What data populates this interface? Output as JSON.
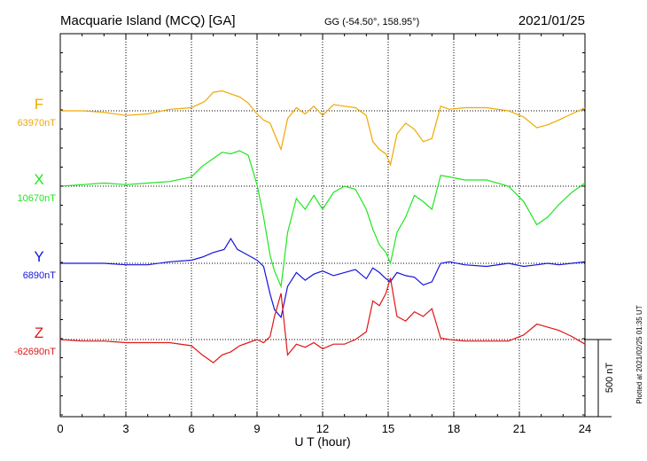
{
  "header": {
    "station": "Macquarie Island (MCQ)  [GA]",
    "coords": "GG (-54.50°, 158.95°)",
    "date": "2021/01/25"
  },
  "footer": {
    "plotted": "Plotted at 2021/02/25 01:35 UT"
  },
  "chart_data": {
    "type": "line",
    "title": "Macquarie Island (MCQ)  [GA]",
    "xlabel": "U T (hour)",
    "xlim": [
      0,
      24
    ],
    "xticks": [
      0,
      3,
      6,
      9,
      12,
      15,
      18,
      21,
      24
    ],
    "xtick_labels": [
      "0",
      "3",
      "6",
      "9",
      "12",
      "15",
      "18",
      "21",
      "24"
    ],
    "scale_bar_label": "500 nT",
    "scale_bar_nT": 500,
    "grid": true,
    "series": [
      {
        "name": "F",
        "baseline_label": "63970nT",
        "baseline_nT": 63970,
        "color": "#f0a800",
        "points": [
          [
            0,
            0
          ],
          [
            1,
            0
          ],
          [
            2,
            -10
          ],
          [
            3,
            -30
          ],
          [
            4,
            -20
          ],
          [
            5,
            10
          ],
          [
            6,
            20
          ],
          [
            6.6,
            60
          ],
          [
            7,
            120
          ],
          [
            7.4,
            130
          ],
          [
            7.8,
            110
          ],
          [
            8.2,
            90
          ],
          [
            8.6,
            50
          ],
          [
            9,
            -20
          ],
          [
            9.3,
            -60
          ],
          [
            9.6,
            -80
          ],
          [
            9.8,
            -150
          ],
          [
            10.1,
            -250
          ],
          [
            10.4,
            -50
          ],
          [
            10.8,
            20
          ],
          [
            11.2,
            -20
          ],
          [
            11.6,
            30
          ],
          [
            12,
            -30
          ],
          [
            12.5,
            40
          ],
          [
            13,
            30
          ],
          [
            13.5,
            20
          ],
          [
            14,
            -30
          ],
          [
            14.3,
            -200
          ],
          [
            14.6,
            -250
          ],
          [
            14.9,
            -280
          ],
          [
            15.1,
            -350
          ],
          [
            15.4,
            -150
          ],
          [
            15.8,
            -80
          ],
          [
            16.2,
            -120
          ],
          [
            16.6,
            -200
          ],
          [
            17,
            -180
          ],
          [
            17.4,
            30
          ],
          [
            17.8,
            10
          ],
          [
            18.5,
            20
          ],
          [
            19.5,
            20
          ],
          [
            20.5,
            0
          ],
          [
            21.2,
            -40
          ],
          [
            21.8,
            -110
          ],
          [
            22.3,
            -90
          ],
          [
            22.8,
            -60
          ],
          [
            23.4,
            -20
          ],
          [
            24,
            20
          ]
        ]
      },
      {
        "name": "X",
        "baseline_label": "10670nT",
        "baseline_nT": 10670,
        "color": "#1ee61e",
        "points": [
          [
            0,
            0
          ],
          [
            1,
            10
          ],
          [
            2,
            20
          ],
          [
            3,
            10
          ],
          [
            4,
            20
          ],
          [
            5,
            30
          ],
          [
            6,
            60
          ],
          [
            6.5,
            130
          ],
          [
            7,
            180
          ],
          [
            7.4,
            220
          ],
          [
            7.8,
            210
          ],
          [
            8.2,
            230
          ],
          [
            8.6,
            200
          ],
          [
            9,
            10
          ],
          [
            9.3,
            -200
          ],
          [
            9.6,
            -450
          ],
          [
            9.8,
            -550
          ],
          [
            10.1,
            -650
          ],
          [
            10.4,
            -300
          ],
          [
            10.8,
            -80
          ],
          [
            11.2,
            -150
          ],
          [
            11.6,
            -60
          ],
          [
            12,
            -150
          ],
          [
            12.5,
            -40
          ],
          [
            13,
            0
          ],
          [
            13.5,
            -20
          ],
          [
            14,
            -150
          ],
          [
            14.3,
            -280
          ],
          [
            14.6,
            -380
          ],
          [
            14.9,
            -430
          ],
          [
            15.1,
            -500
          ],
          [
            15.4,
            -300
          ],
          [
            15.8,
            -200
          ],
          [
            16.2,
            -60
          ],
          [
            16.6,
            -100
          ],
          [
            17,
            -150
          ],
          [
            17.4,
            70
          ],
          [
            17.8,
            60
          ],
          [
            18.5,
            40
          ],
          [
            19.5,
            40
          ],
          [
            20.5,
            0
          ],
          [
            21.2,
            -100
          ],
          [
            21.8,
            -250
          ],
          [
            22.3,
            -200
          ],
          [
            22.8,
            -120
          ],
          [
            23.4,
            -40
          ],
          [
            24,
            20
          ]
        ]
      },
      {
        "name": "Y",
        "baseline_label": "6890nT",
        "baseline_nT": 6890,
        "color": "#1515dd",
        "points": [
          [
            0,
            0
          ],
          [
            1,
            0
          ],
          [
            2,
            0
          ],
          [
            3,
            -10
          ],
          [
            4,
            -10
          ],
          [
            5,
            10
          ],
          [
            6,
            20
          ],
          [
            6.5,
            40
          ],
          [
            7,
            70
          ],
          [
            7.5,
            90
          ],
          [
            7.8,
            160
          ],
          [
            8.1,
            90
          ],
          [
            8.5,
            60
          ],
          [
            9,
            20
          ],
          [
            9.3,
            -20
          ],
          [
            9.6,
            -200
          ],
          [
            9.8,
            -300
          ],
          [
            10.1,
            -350
          ],
          [
            10.4,
            -150
          ],
          [
            10.8,
            -60
          ],
          [
            11.2,
            -110
          ],
          [
            11.6,
            -70
          ],
          [
            12,
            -50
          ],
          [
            12.5,
            -80
          ],
          [
            13,
            -60
          ],
          [
            13.5,
            -40
          ],
          [
            14,
            -100
          ],
          [
            14.3,
            -30
          ],
          [
            14.6,
            -60
          ],
          [
            14.9,
            -100
          ],
          [
            15.1,
            -120
          ],
          [
            15.4,
            -60
          ],
          [
            15.8,
            -80
          ],
          [
            16.2,
            -90
          ],
          [
            16.6,
            -140
          ],
          [
            17,
            -120
          ],
          [
            17.4,
            0
          ],
          [
            17.8,
            10
          ],
          [
            18.5,
            -10
          ],
          [
            19.5,
            -20
          ],
          [
            20.5,
            0
          ],
          [
            21.2,
            -20
          ],
          [
            21.8,
            -10
          ],
          [
            22.3,
            0
          ],
          [
            22.8,
            -10
          ],
          [
            23.4,
            0
          ],
          [
            24,
            10
          ]
        ]
      },
      {
        "name": "Z",
        "baseline_label": "-62690nT",
        "baseline_nT": -62690,
        "color": "#e01515",
        "points": [
          [
            0,
            0
          ],
          [
            1,
            -10
          ],
          [
            2,
            -10
          ],
          [
            3,
            -20
          ],
          [
            4,
            -20
          ],
          [
            5,
            -20
          ],
          [
            6,
            -40
          ],
          [
            6.5,
            -100
          ],
          [
            7,
            -150
          ],
          [
            7.4,
            -100
          ],
          [
            7.8,
            -80
          ],
          [
            8.2,
            -40
          ],
          [
            8.6,
            -20
          ],
          [
            9,
            0
          ],
          [
            9.3,
            -20
          ],
          [
            9.6,
            20
          ],
          [
            9.8,
            150
          ],
          [
            10.1,
            300
          ],
          [
            10.4,
            -100
          ],
          [
            10.8,
            -30
          ],
          [
            11.2,
            -50
          ],
          [
            11.6,
            -20
          ],
          [
            12,
            -60
          ],
          [
            12.5,
            -30
          ],
          [
            13,
            -30
          ],
          [
            13.5,
            0
          ],
          [
            14,
            50
          ],
          [
            14.3,
            250
          ],
          [
            14.6,
            220
          ],
          [
            14.9,
            300
          ],
          [
            15.1,
            400
          ],
          [
            15.4,
            150
          ],
          [
            15.8,
            120
          ],
          [
            16.2,
            180
          ],
          [
            16.6,
            150
          ],
          [
            17,
            200
          ],
          [
            17.4,
            10
          ],
          [
            17.8,
            0
          ],
          [
            18.5,
            -10
          ],
          [
            19.5,
            -10
          ],
          [
            20.5,
            -10
          ],
          [
            21.2,
            30
          ],
          [
            21.8,
            100
          ],
          [
            22.3,
            80
          ],
          [
            22.8,
            60
          ],
          [
            23.4,
            20
          ],
          [
            24,
            -30
          ]
        ]
      }
    ]
  }
}
